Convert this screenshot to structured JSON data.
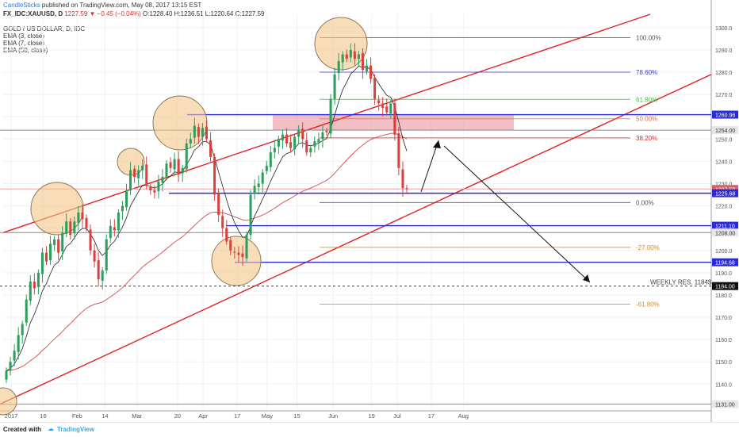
{
  "header": {
    "author": "CandleSticks",
    "published_text": "published on TradingView.com, May 08, 2017 13:15 EST",
    "symbol": "FX_IDC:XAUUSD, D",
    "last": "1227.59",
    "change": "▼ −0.45 (−0.04%)",
    "ohlc": "O:1228.40 H:1236.51 L:1220.64 C:1227.59",
    "title": "GOLD / US DOLLAR, D, IDC",
    "indicators": [
      "EMA (3, close)",
      "EMA (7, close)",
      "EMA (50, close)"
    ]
  },
  "footer": {
    "created_with": "Created with",
    "brand": "TradingView"
  },
  "colors": {
    "up": "#2e9e5e",
    "down": "#d9413d",
    "channel": "#e02020",
    "level": "#2a2ad6",
    "fib_grey": "#555555"
  },
  "chart_data": {
    "type": "candlestick",
    "title": "GOLD / US DOLLAR, D, IDC",
    "instrument": "FX_IDC:XAUUSD",
    "timeframe": "D",
    "ylim": [
      1128,
      1306
    ],
    "y_ticks": [
      1140,
      1150,
      1160,
      1170,
      1180,
      1190,
      1200,
      1210,
      1220,
      1230,
      1240,
      1250,
      1260,
      1270,
      1280,
      1290,
      1300
    ],
    "x_labels": [
      {
        "label": "2017",
        "date": "2017-01-01"
      },
      {
        "label": "16",
        "date": "2017-01-16"
      },
      {
        "label": "Feb",
        "date": "2017-02-01"
      },
      {
        "label": "14",
        "date": "2017-02-14"
      },
      {
        "label": "Mar",
        "date": "2017-03-01"
      },
      {
        "label": "20",
        "date": "2017-03-20"
      },
      {
        "label": "Apr",
        "date": "2017-04-01"
      },
      {
        "label": "17",
        "date": "2017-04-17"
      },
      {
        "label": "May",
        "date": "2017-05-01"
      },
      {
        "label": "15",
        "date": "2017-05-15"
      },
      {
        "label": "Jun",
        "date": "2017-06-01"
      },
      {
        "label": "19",
        "date": "2017-06-19"
      },
      {
        "label": "Jul",
        "date": "2017-07-01"
      },
      {
        "label": "17",
        "date": "2017-07-17"
      },
      {
        "label": "Aug",
        "date": "2017-08-01"
      }
    ],
    "closes": [
      1146,
      1150,
      1155,
      1162,
      1167,
      1178,
      1186,
      1183,
      1190,
      1199,
      1195,
      1203,
      1205,
      1199,
      1208,
      1213,
      1207,
      1213,
      1217,
      1214,
      1210,
      1200,
      1195,
      1187,
      1191,
      1205,
      1211,
      1209,
      1217,
      1220,
      1227,
      1236,
      1233,
      1236,
      1238,
      1229,
      1227,
      1226,
      1231,
      1233,
      1239,
      1237,
      1241,
      1234,
      1237,
      1248,
      1250,
      1256,
      1251,
      1255,
      1250,
      1242,
      1225,
      1216,
      1210,
      1204,
      1200,
      1199,
      1198,
      1197,
      1207,
      1225,
      1229,
      1230,
      1235,
      1238,
      1244,
      1246,
      1250,
      1252,
      1248,
      1246,
      1251,
      1254,
      1250,
      1244,
      1246,
      1249,
      1250,
      1253,
      1253,
      1268,
      1279,
      1285,
      1288,
      1286,
      1290,
      1286,
      1288,
      1281,
      1283,
      1277,
      1268,
      1266,
      1264,
      1262,
      1266,
      1252,
      1237,
      1228,
      1227.59
    ],
    "price_labels": [
      {
        "value": 1300,
        "label": "1300.0"
      },
      {
        "value": 1290,
        "label": "1290.0"
      },
      {
        "value": 1280,
        "label": "1280.0"
      },
      {
        "value": 1270,
        "label": "1270.0"
      },
      {
        "value": 1260.96,
        "label": "1260.96",
        "style": "box"
      },
      {
        "value": 1254,
        "label": "1254.00",
        "style": "box"
      },
      {
        "value": 1250,
        "label": "1250.0"
      },
      {
        "value": 1240,
        "label": "1240.0"
      },
      {
        "value": 1230,
        "label": "1230.0"
      },
      {
        "value": 1227.59,
        "label": "1227.59",
        "style": "last"
      },
      {
        "value": 1225.68,
        "label": "1225.68",
        "style": "box"
      },
      {
        "value": 1220,
        "label": "1220.0"
      },
      {
        "value": 1211.1,
        "label": "1211.10",
        "style": "box"
      },
      {
        "value": 1208,
        "label": "1208.00",
        "style": "box"
      },
      {
        "value": 1200,
        "label": "1200.0"
      },
      {
        "value": 1194.68,
        "label": "1194.68",
        "style": "box"
      },
      {
        "value": 1190,
        "label": "1190.0"
      },
      {
        "value": 1184,
        "label": "1184.00",
        "style": "dark"
      },
      {
        "value": 1180,
        "label": "1180.0"
      },
      {
        "value": 1170,
        "label": "1170.0"
      },
      {
        "value": 1160,
        "label": "1160.0"
      },
      {
        "value": 1150,
        "label": "1150.0"
      },
      {
        "value": 1140,
        "label": "1140.0"
      },
      {
        "value": 1131,
        "label": "1131.00",
        "style": "box"
      }
    ],
    "fib_levels": [
      {
        "label": "100.00%",
        "value": 1295.5,
        "color": "#555555"
      },
      {
        "label": "78.60%",
        "value": 1280,
        "color": "#3a3ad0"
      },
      {
        "label": "61.80%",
        "value": 1267.8,
        "color": "#3fbf3f"
      },
      {
        "label": "50.00%",
        "value": 1259.1,
        "color": "#e07040"
      },
      {
        "label": "38.20%",
        "value": 1250.5,
        "color": "#d03030"
      },
      {
        "label": "0.00%",
        "value": 1221.5,
        "color": "#555555"
      },
      {
        "label": "-27.00%",
        "value": 1201.4,
        "color": "#e08a10"
      },
      {
        "label": "-61.80%",
        "value": 1175.9,
        "color": "#e08a10"
      }
    ],
    "horizontal_levels": [
      1260.96,
      1254,
      1225.68,
      1211.1,
      1208,
      1194.68,
      1131
    ],
    "annotations": [
      {
        "text": "WEEKLY RES. 1184$",
        "value": 1184
      }
    ],
    "resistance_zone": [
      1254,
      1260.96
    ]
  }
}
